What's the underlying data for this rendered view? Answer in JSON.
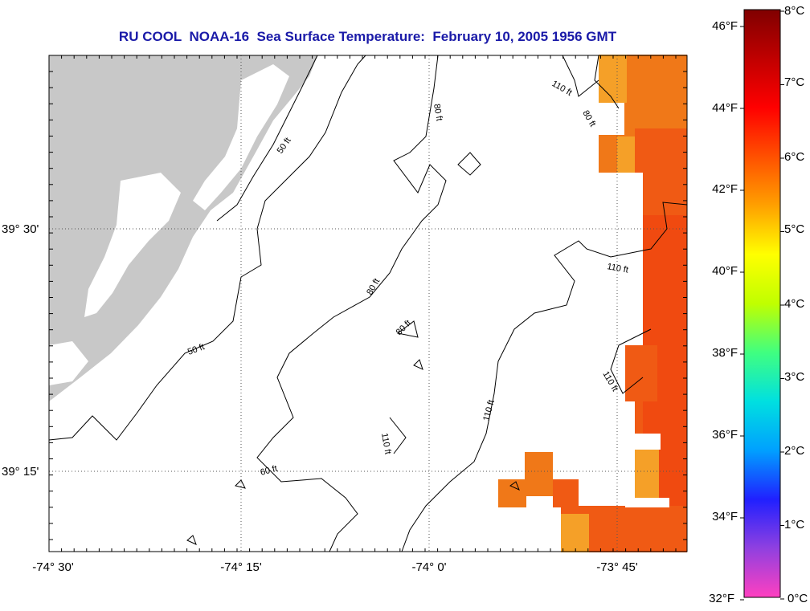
{
  "title": "RU COOL  NOAA-16  Sea Surface Temperature:  February 10, 2005 1956 GMT",
  "x_ticks": [
    "-74° 30'",
    "-74° 15'",
    "-74° 0'",
    "-73° 45'"
  ],
  "y_ticks": [
    "39° 30'",
    "39° 15'"
  ],
  "contour_labels": [
    "50 ft",
    "50 ft",
    "80 ft",
    "80 ft",
    "80 ft",
    "80 ft",
    "110 ft",
    "110 ft",
    "110 ft",
    "110 ft",
    "60 ft",
    "110 ft"
  ],
  "colorbar": {
    "fahrenheit": [
      "46°F",
      "44°F",
      "42°F",
      "40°F",
      "38°F",
      "36°F",
      "34°F",
      "32°F"
    ],
    "celsius": [
      "8°C",
      "7°C",
      "6°C",
      "5°C",
      "4°C",
      "3°C",
      "2°C",
      "1°C",
      "0°C"
    ],
    "stops": [
      "#ff40c0",
      "#9040e0",
      "#2020ff",
      "#00a0ff",
      "#00e0e0",
      "#40ff80",
      "#c0ff00",
      "#ffff00",
      "#ffa000",
      "#ff5000",
      "#ff0000",
      "#c00000",
      "#800000"
    ]
  },
  "colors": {
    "land": "#c8c8c8",
    "title": "#1a1aa8",
    "sst_warm": "#f05a14",
    "sst_mid": "#f07818",
    "sst_light": "#f5a028"
  }
}
